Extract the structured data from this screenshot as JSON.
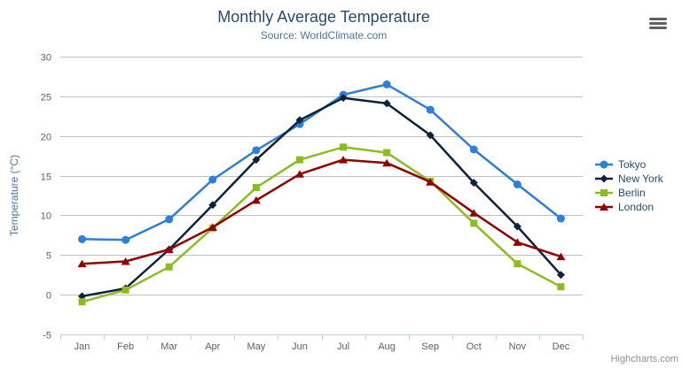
{
  "header": {
    "title": "Monthly Average Temperature",
    "subtitle": "Source: WorldClimate.com"
  },
  "export_menu": {
    "icon": "hamburger-menu-icon"
  },
  "credits": {
    "label": "Highcharts.com"
  },
  "colors": {
    "title": "#274b6d",
    "subtitle": "#4d759e",
    "axis_title": "#4d759e",
    "axis_label": "#606060",
    "grid": "#c0c0c0",
    "axis_line": "#c0d0e0",
    "legend_text": "#274b6d",
    "credits_text": "#8f8f8f",
    "burger": "#606060",
    "background": "#ffffff"
  },
  "chart_data": {
    "type": "line",
    "title": "Monthly Average Temperature",
    "subtitle": "Source: WorldClimate.com",
    "xlabel": "",
    "ylabel": "Temperature (°C)",
    "ylim": [
      -5,
      30
    ],
    "yticks": [
      30,
      25,
      20,
      15,
      10,
      5,
      0,
      -5
    ],
    "grid": true,
    "legend_position": "right",
    "categories": [
      "Jan",
      "Feb",
      "Mar",
      "Apr",
      "May",
      "Jun",
      "Jul",
      "Aug",
      "Sep",
      "Oct",
      "Nov",
      "Dec"
    ],
    "series": [
      {
        "name": "Tokyo",
        "color": "#2f7ed8",
        "marker": "circle",
        "values": [
          7.0,
          6.9,
          9.5,
          14.5,
          18.2,
          21.5,
          25.2,
          26.5,
          23.3,
          18.3,
          13.9,
          9.6
        ]
      },
      {
        "name": "New York",
        "color": "#0d233a",
        "marker": "diamond",
        "values": [
          -0.2,
          0.8,
          5.7,
          11.3,
          17.0,
          22.0,
          24.8,
          24.1,
          20.1,
          14.1,
          8.6,
          2.5
        ]
      },
      {
        "name": "Berlin",
        "color": "#8bbc21",
        "marker": "square",
        "values": [
          -0.9,
          0.6,
          3.5,
          8.4,
          13.5,
          17.0,
          18.6,
          17.9,
          14.3,
          9.0,
          3.9,
          1.0
        ]
      },
      {
        "name": "London",
        "color": "#910000",
        "marker": "triangle",
        "values": [
          3.9,
          4.2,
          5.7,
          8.5,
          11.9,
          15.2,
          17.0,
          16.6,
          14.2,
          10.3,
          6.6,
          4.8
        ]
      }
    ]
  }
}
